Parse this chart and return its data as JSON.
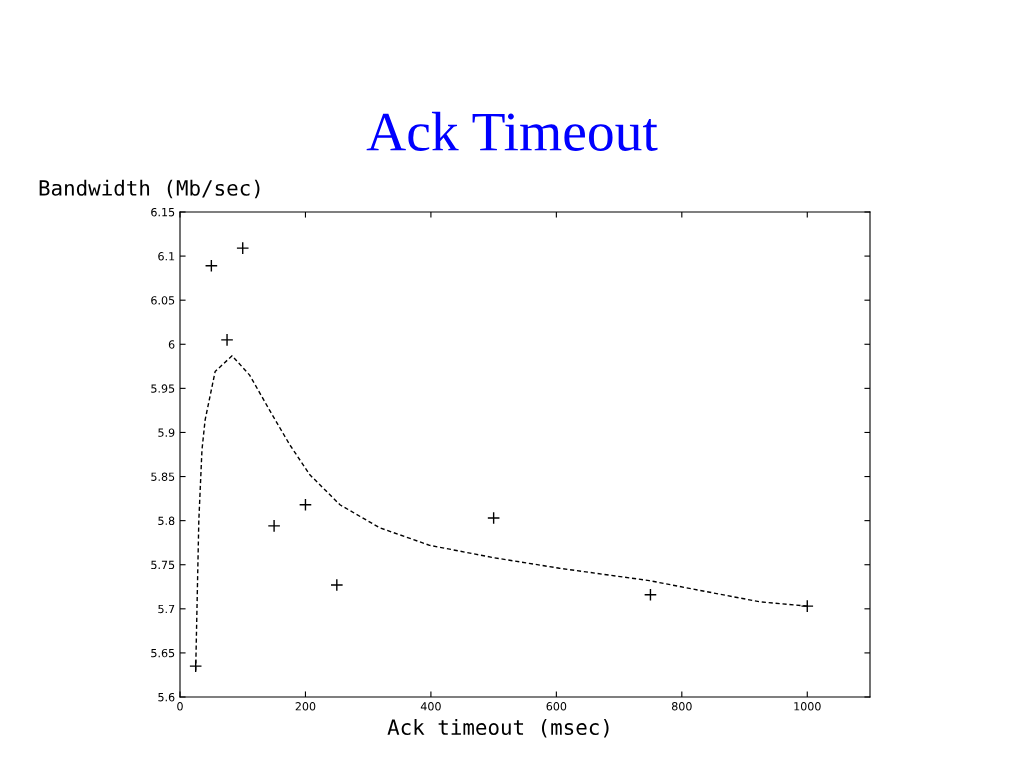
{
  "chart_data": {
    "type": "scatter",
    "title": "Ack Timeout",
    "xlabel": "Ack timeout (msec)",
    "ylabel": "Bandwidth (Mb/sec)",
    "xlim": [
      0,
      1100
    ],
    "xticks": [
      0,
      200,
      400,
      600,
      800,
      1000
    ],
    "ylim": [
      5.6,
      6.15
    ],
    "yticks": [
      5.6,
      5.65,
      5.7,
      5.75,
      5.8,
      5.85,
      5.9,
      5.95,
      6,
      6.05,
      6.1,
      6.15
    ],
    "grid": false,
    "legend": false,
    "series": [
      {
        "color": "#000000",
        "marker": "cross",
        "x": [
          25,
          50,
          75,
          100,
          150,
          200,
          250,
          500,
          750,
          1000
        ],
        "values": [
          5.635,
          6.089,
          6.005,
          6.109,
          5.794,
          5.818,
          5.727,
          5.803,
          5.716,
          5.703
        ]
      },
      {
        "type": "line",
        "color": "#000000",
        "line_style": "dashed",
        "marker": "none",
        "x": [
          25,
          30,
          35,
          40,
          56,
          83,
          111,
          143,
          175,
          207,
          255,
          318,
          398,
          500,
          605,
          748,
          828,
          924,
          1000
        ],
        "values": [
          5.63,
          5.8,
          5.88,
          5.914,
          5.969,
          5.987,
          5.965,
          5.925,
          5.886,
          5.852,
          5.818,
          5.792,
          5.772,
          5.758,
          5.746,
          5.732,
          5.721,
          5.708,
          5.703
        ]
      }
    ]
  }
}
